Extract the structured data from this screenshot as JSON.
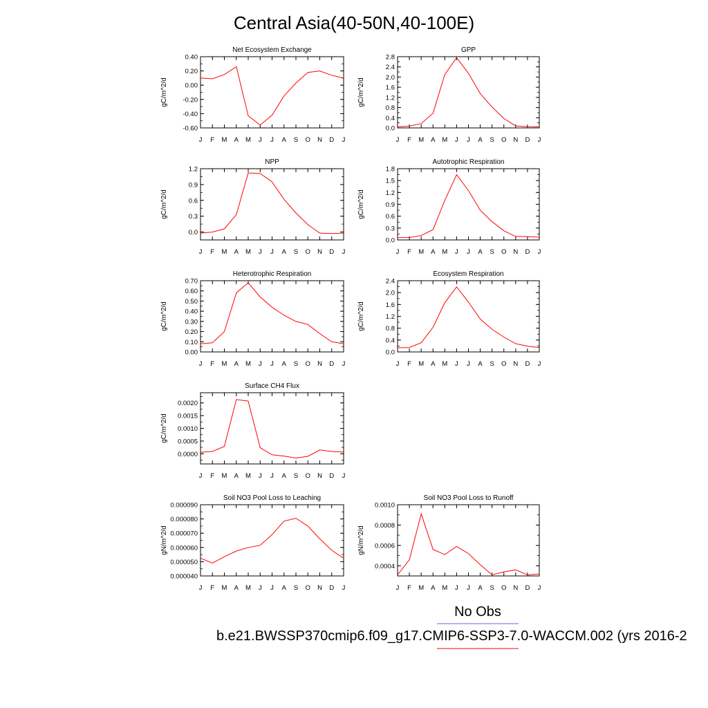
{
  "page": {
    "title": "Central Asia(40-50N,40-100E)",
    "legend": {
      "obs_label": "No Obs",
      "obs_color": "#5b6ee1",
      "case_label": "b.e21.BWSSP370cmip6.f09_g17.CMIP6-SSP3-7.0-WACCM.002 (yrs 2016-2",
      "case_color": "#ff0000"
    }
  },
  "chart_data": [
    {
      "type": "line",
      "title": "Net Ecosystem Exchange",
      "ylabel": "gC/m^2/d",
      "categories": [
        "J",
        "F",
        "M",
        "A",
        "M",
        "J",
        "J",
        "A",
        "S",
        "O",
        "N",
        "D",
        "J"
      ],
      "ylim": [
        -0.6,
        0.4
      ],
      "yticks": [
        "0.40",
        "0.20",
        "0.00",
        "-0.20",
        "-0.40",
        "-0.60"
      ],
      "series": [
        {
          "color": "#ff0000",
          "values": [
            0.1,
            0.09,
            0.15,
            0.26,
            -0.43,
            -0.56,
            -0.42,
            -0.15,
            0.03,
            0.18,
            0.2,
            0.14,
            0.1
          ]
        }
      ]
    },
    {
      "type": "line",
      "title": "GPP",
      "ylabel": "gC/m^2/d",
      "categories": [
        "J",
        "F",
        "M",
        "A",
        "M",
        "J",
        "J",
        "A",
        "S",
        "O",
        "N",
        "D",
        "J"
      ],
      "ylim": [
        0,
        2.8
      ],
      "yticks": [
        "2.8",
        "2.4",
        "2.0",
        "1.6",
        "1.2",
        "0.8",
        "0.4",
        "0.0"
      ],
      "series": [
        {
          "color": "#ff0000",
          "values": [
            0.04,
            0.07,
            0.17,
            0.58,
            2.1,
            2.76,
            2.15,
            1.35,
            0.82,
            0.37,
            0.08,
            0.05,
            0.04
          ]
        }
      ]
    },
    {
      "type": "line",
      "title": "NPP",
      "ylabel": "gC/m^2/d",
      "categories": [
        "J",
        "F",
        "M",
        "A",
        "M",
        "J",
        "J",
        "A",
        "S",
        "O",
        "N",
        "D",
        "J"
      ],
      "ylim": [
        -0.15,
        1.2
      ],
      "yticks": [
        "1.2",
        "0.9",
        "0.6",
        "0.3",
        "0.0"
      ],
      "series": [
        {
          "color": "#ff0000",
          "values": [
            -0.02,
            0.0,
            0.06,
            0.33,
            1.12,
            1.11,
            0.95,
            0.62,
            0.36,
            0.14,
            -0.02,
            -0.03,
            -0.02
          ]
        }
      ]
    },
    {
      "type": "line",
      "title": "Autotrophic Respiration",
      "ylabel": "gC/m^2/d",
      "categories": [
        "J",
        "F",
        "M",
        "A",
        "M",
        "J",
        "J",
        "A",
        "S",
        "O",
        "N",
        "D",
        "J"
      ],
      "ylim": [
        0,
        1.8
      ],
      "yticks": [
        "1.8",
        "1.5",
        "1.2",
        "0.9",
        "0.6",
        "0.3",
        "0.0"
      ],
      "series": [
        {
          "color": "#ff0000",
          "values": [
            0.06,
            0.06,
            0.11,
            0.26,
            1.0,
            1.65,
            1.25,
            0.75,
            0.46,
            0.23,
            0.09,
            0.08,
            0.07
          ]
        }
      ]
    },
    {
      "type": "line",
      "title": "Heterotrophic Respiration",
      "ylabel": "gC/m^2/d",
      "categories": [
        "J",
        "F",
        "M",
        "A",
        "M",
        "J",
        "J",
        "A",
        "S",
        "O",
        "N",
        "D",
        "J"
      ],
      "ylim": [
        0,
        0.7
      ],
      "yticks": [
        "0.70",
        "0.60",
        "0.50",
        "0.40",
        "0.30",
        "0.20",
        "0.10",
        "0.00"
      ],
      "series": [
        {
          "color": "#ff0000",
          "values": [
            0.08,
            0.09,
            0.2,
            0.58,
            0.68,
            0.54,
            0.44,
            0.36,
            0.3,
            0.27,
            0.18,
            0.1,
            0.08
          ]
        }
      ]
    },
    {
      "type": "line",
      "title": "Ecosystem Respiration",
      "ylabel": "gC/m^2/d",
      "categories": [
        "J",
        "F",
        "M",
        "A",
        "M",
        "J",
        "J",
        "A",
        "S",
        "O",
        "N",
        "D",
        "J"
      ],
      "ylim": [
        0,
        2.4
      ],
      "yticks": [
        "2.4",
        "2.0",
        "1.6",
        "1.2",
        "0.8",
        "0.4",
        "0.0"
      ],
      "series": [
        {
          "color": "#ff0000",
          "values": [
            0.14,
            0.15,
            0.31,
            0.83,
            1.66,
            2.19,
            1.68,
            1.11,
            0.76,
            0.5,
            0.28,
            0.19,
            0.15
          ]
        }
      ]
    },
    {
      "type": "line",
      "title": "Surface CH4 Flux",
      "ylabel": "gC/m^2/d",
      "categories": [
        "J",
        "F",
        "M",
        "A",
        "M",
        "J",
        "J",
        "A",
        "S",
        "O",
        "N",
        "D",
        "J"
      ],
      "ylim": [
        -0.0004,
        0.0024
      ],
      "yticks": [
        "0.0020",
        "0.0015",
        "0.0010",
        "0.0005",
        "0.0000"
      ],
      "series": [
        {
          "color": "#ff0000",
          "values": [
            6e-05,
            9e-05,
            0.00029,
            0.00213,
            0.00207,
            0.00024,
            -4e-05,
            -9e-05,
            -0.00017,
            -0.0001,
            0.00015,
            9e-05,
            7e-05
          ]
        }
      ]
    },
    {
      "type": "line",
      "title": "Soil NO3 Pool Loss to Leaching",
      "ylabel": "gN/m^2/d",
      "categories": [
        "J",
        "F",
        "M",
        "A",
        "M",
        "J",
        "J",
        "A",
        "S",
        "O",
        "N",
        "D",
        "J"
      ],
      "ylim": [
        4e-05,
        9e-05
      ],
      "yticks": [
        "0.000090",
        "0.000080",
        "0.000070",
        "0.000060",
        "0.000050",
        "0.000040"
      ],
      "series": [
        {
          "color": "#ff0000",
          "values": [
            5.25e-05,
            4.9e-05,
            5.35e-05,
            5.75e-05,
            6e-05,
            6.15e-05,
            6.9e-05,
            7.85e-05,
            8.05e-05,
            7.5e-05,
            6.6e-05,
            5.8e-05,
            5.25e-05
          ]
        }
      ]
    },
    {
      "type": "line",
      "title": "Soil NO3 Pool Loss to Runoff",
      "ylabel": "gN/m^2/d",
      "categories": [
        "J",
        "F",
        "M",
        "A",
        "M",
        "J",
        "J",
        "A",
        "S",
        "O",
        "N",
        "D",
        "J"
      ],
      "ylim": [
        0.0003,
        0.001
      ],
      "yticks": [
        "0.0010",
        "0.0008",
        "0.0006",
        "0.0004"
      ],
      "series": [
        {
          "color": "#ff0000",
          "values": [
            0.00031,
            0.00046,
            0.00091,
            0.00056,
            0.00051,
            0.00059,
            0.00052,
            0.00041,
            0.00031,
            0.00034,
            0.00036,
            0.00031,
            0.00032
          ]
        }
      ]
    }
  ]
}
